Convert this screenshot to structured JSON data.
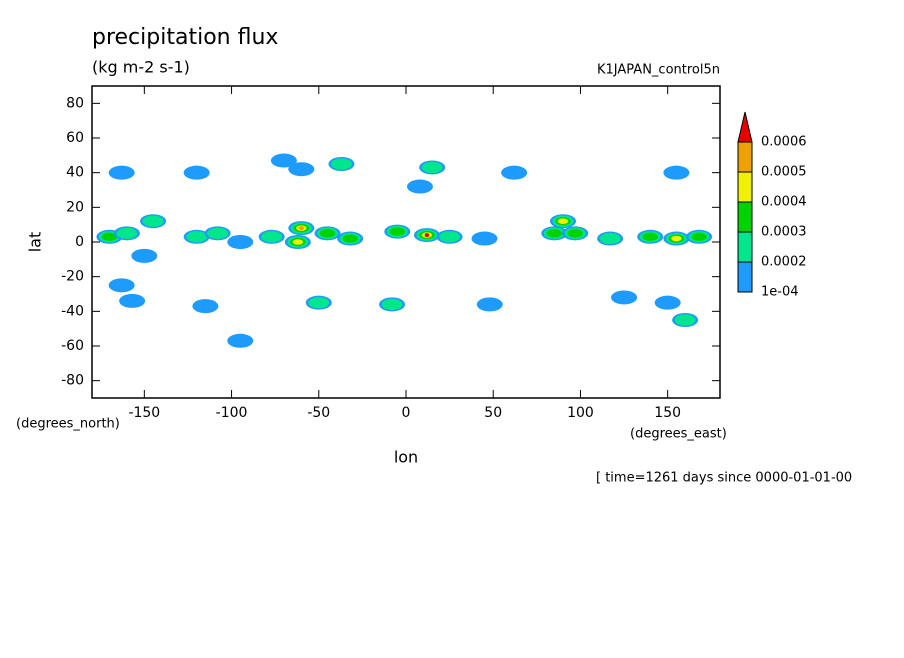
{
  "chart_data": {
    "type": "contour",
    "title": "precipitation flux",
    "subtitle": "(kg m-2 s-1)",
    "run_label": "K1JAPAN_control5n",
    "x_label": "lon",
    "y_label": "lat",
    "x_unit": "(degrees_east)",
    "y_unit": "(degrees_north)",
    "time_label": "[ time=1261 days since 0000-01-01-00",
    "xlim": [
      -180,
      180
    ],
    "ylim": [
      -90,
      90
    ],
    "xticks": [
      -150,
      -100,
      -50,
      0,
      50,
      100,
      150
    ],
    "yticks": [
      -80,
      -60,
      -40,
      -20,
      0,
      20,
      40,
      60,
      80
    ],
    "levels": [
      {
        "value": 0.0001,
        "label": "1e-04"
      },
      0.0002,
      0.0003,
      0.0004,
      0.0005,
      0.0006
    ],
    "colors": [
      "#1e9bff",
      "#00e68c",
      "#00d200",
      "#f0f000",
      "#f0a000",
      "#e60000"
    ],
    "x": [
      -170,
      -160,
      -163,
      -145,
      -150,
      -163,
      -157,
      -120,
      -120,
      -108,
      -95,
      -115,
      -95,
      -70,
      -60,
      -37,
      -77,
      -60,
      -62,
      -45,
      -32,
      -50,
      -5,
      12,
      25,
      45,
      15,
      8,
      62,
      -8,
      48,
      85,
      90,
      97,
      117,
      125,
      140,
      155,
      168,
      155,
      150,
      160
    ],
    "y": [
      3,
      5,
      40,
      12,
      -8,
      -25,
      -34,
      40,
      3,
      5,
      0,
      -37,
      -57,
      47,
      42,
      45,
      3,
      8,
      0,
      5,
      2,
      -35,
      6,
      4,
      3,
      2,
      43,
      32,
      40,
      -36,
      -36,
      5,
      12,
      5,
      2,
      -32,
      3,
      2,
      3,
      40,
      -35,
      -45
    ],
    "values": [
      0.00035,
      0.00025,
      0.00015,
      0.0002,
      0.00015,
      0.00012,
      0.00015,
      0.00015,
      0.00025,
      0.0002,
      0.00012,
      0.00015,
      0.00012,
      0.00015,
      0.00018,
      0.00022,
      0.00025,
      0.00055,
      0.00045,
      0.0003,
      0.00035,
      0.0002,
      0.0003,
      0.00065,
      0.00025,
      0.00015,
      0.0002,
      0.00015,
      0.00015,
      0.0002,
      0.00012,
      0.0003,
      0.0004,
      0.00035,
      0.0002,
      0.00018,
      0.0003,
      0.00045,
      0.0003,
      0.00018,
      0.00015,
      0.0002
    ]
  }
}
